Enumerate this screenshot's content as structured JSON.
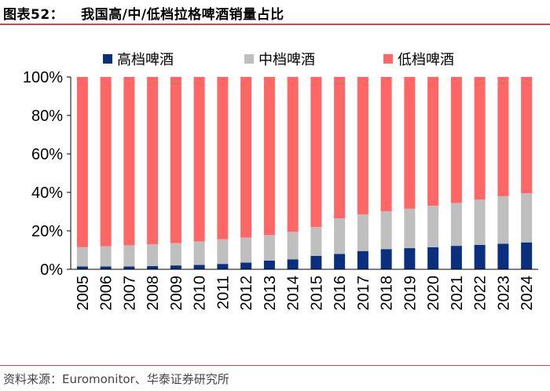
{
  "header": {
    "figure_number": "图表52：",
    "title": "我国高/中/低档拉格啤酒销量占比"
  },
  "footer": {
    "source": "资料来源：Euromonitor、华泰证券研究所"
  },
  "chart_data": {
    "type": "bar",
    "stacked": true,
    "title": "我国高/中/低档拉格啤酒销量占比",
    "xlabel": "",
    "ylabel": "",
    "ylim": [
      0,
      100
    ],
    "y_ticks": [
      "0%",
      "20%",
      "40%",
      "60%",
      "80%",
      "100%"
    ],
    "y_tick_values": [
      0,
      20,
      40,
      60,
      80,
      100
    ],
    "grid": false,
    "legend_position": "top",
    "categories": [
      "2005",
      "2006",
      "2007",
      "2008",
      "2009",
      "2010",
      "2011",
      "2012",
      "2013",
      "2014",
      "2015",
      "2016",
      "2017",
      "2018",
      "2019",
      "2020",
      "2021",
      "2022",
      "2023",
      "2024"
    ],
    "series": [
      {
        "name": "高档啤酒",
        "color": "#0b2f7f",
        "values": [
          1.5,
          1.5,
          1.5,
          1.7,
          2.0,
          2.3,
          2.8,
          3.5,
          4.5,
          5.2,
          7.0,
          8.0,
          9.5,
          10.5,
          11.0,
          11.5,
          12.2,
          12.7,
          13.3,
          14.0
        ]
      },
      {
        "name": "中档啤酒",
        "color": "#bfbfbf",
        "values": [
          10.0,
          10.5,
          11.0,
          11.3,
          11.6,
          12.2,
          12.8,
          13.0,
          13.3,
          14.3,
          15.0,
          18.5,
          19.0,
          19.7,
          20.5,
          21.5,
          22.3,
          23.5,
          24.7,
          25.5
        ]
      },
      {
        "name": "低档啤酒",
        "color": "#ff6666",
        "values": [
          88.5,
          88.0,
          87.5,
          87.0,
          86.4,
          85.5,
          84.4,
          83.5,
          82.2,
          80.5,
          78.0,
          73.5,
          71.5,
          69.8,
          68.5,
          67.0,
          65.5,
          63.8,
          62.0,
          60.5
        ]
      }
    ]
  }
}
